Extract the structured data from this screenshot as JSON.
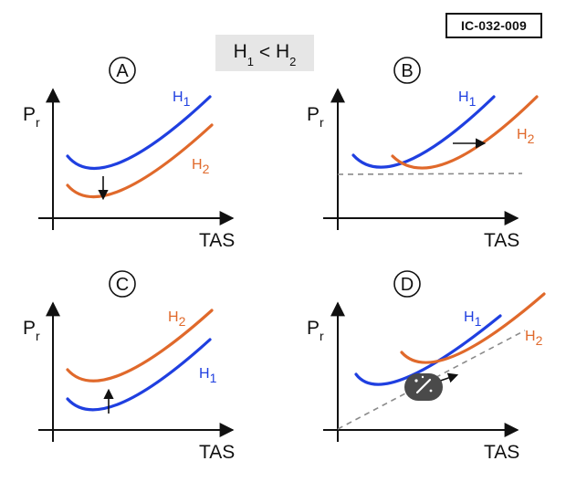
{
  "figure_code": "IC-032-009",
  "condition": {
    "left_main": "H",
    "left_sub": "1",
    "op": "<",
    "right_main": "H",
    "right_sub": "2"
  },
  "axes": {
    "y_main": "P",
    "y_sub": "r",
    "x_label": "TAS"
  },
  "curves": {
    "h_main": "H",
    "h1_sub": "1",
    "h2_sub": "2"
  },
  "panels": [
    {
      "letter": "A"
    },
    {
      "letter": "B"
    },
    {
      "letter": "C"
    },
    {
      "letter": "D"
    }
  ],
  "colors": {
    "h1": "#1f3fe0",
    "h2": "#e0692b",
    "tangent": "#8a8a8a"
  }
}
